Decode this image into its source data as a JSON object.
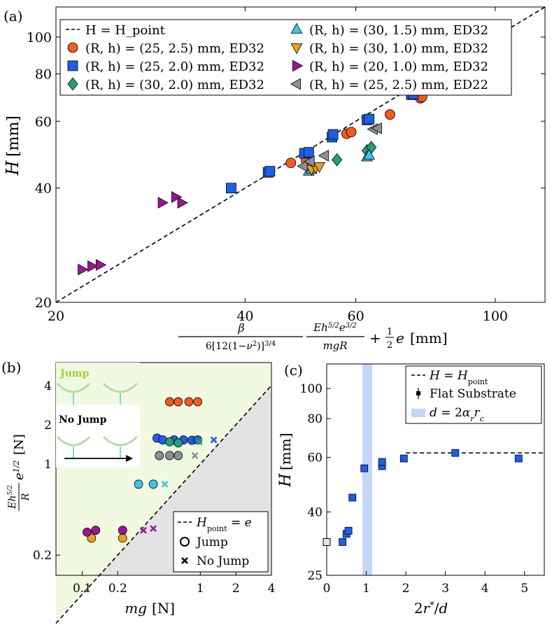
{
  "chart_data": [
    {
      "panel": "(a)",
      "type": "scatter",
      "xscale": "log",
      "yscale": "log",
      "xlim": [
        20,
        120
      ],
      "ylim": [
        20,
        120
      ],
      "xticks": [
        20,
        40,
        60,
        100
      ],
      "yticks": [
        20,
        40,
        60,
        80,
        100
      ],
      "ylabel_var": "H",
      "ylabel_unit": "[mm]",
      "xlabel": {
        "beta": "β",
        "denom": "6[12(1−ν²)]^{3/4}",
        "num2": "Eh^{5/2}e^{3/2}",
        "den2": "mgR",
        "tail": "+ ½e [mm]",
        "unit": "[mm]"
      },
      "legend_position": "top",
      "reference_line": {
        "label": "H = H_point",
        "kind": "y=x"
      },
      "series": [
        {
          "name": "(R, h) = (25, 2.5) mm, ED32",
          "marker": "circle",
          "color": "#f25a1e",
          "points": [
            [
              47.3,
              46.6
            ],
            [
              50,
              47.4
            ],
            [
              58,
              55.6
            ],
            [
              59,
              56.2
            ],
            [
              68,
              62.5
            ],
            [
              76,
              69
            ],
            [
              76.5,
              69.5
            ]
          ]
        },
        {
          "name": "(R, h) = (25, 2.0) mm, ED32",
          "marker": "square",
          "color": "#1f5fe6",
          "points": [
            [
              38,
              40
            ],
            [
              43.5,
              44
            ],
            [
              43.8,
              44.3
            ],
            [
              49.7,
              49.4
            ],
            [
              50.5,
              49.7
            ],
            [
              55,
              54.5
            ],
            [
              55.2,
              55.4
            ],
            [
              62.5,
              60.5
            ],
            [
              63,
              60.8
            ],
            [
              73.5,
              70.5
            ],
            [
              74,
              70.8
            ]
          ]
        },
        {
          "name": "(R, h) = (30, 2.0) mm, ED32",
          "marker": "diamond",
          "color": "#22a07a",
          "points": [
            [
              56,
              47.5
            ],
            [
              62.5,
              50.2
            ],
            [
              63.5,
              51.2
            ]
          ]
        },
        {
          "name": "(R, h) = (30, 1.5) mm, ED32",
          "marker": "triangle-up",
          "color": "#3ec5ea",
          "points": [
            [
              50.5,
              44.3
            ],
            [
              51,
              44.8
            ],
            [
              62.5,
              48.3
            ],
            [
              63,
              48.8
            ]
          ]
        },
        {
          "name": "(R, h) = (30, 1.0) mm, ED32",
          "marker": "triangle-down",
          "color": "#e8a11a",
          "points": [
            [
              51,
              44.8
            ],
            [
              51.8,
              45.3
            ],
            [
              52.5,
              45.6
            ]
          ]
        },
        {
          "name": "(R, h) = (20, 1.0) mm, ED32",
          "marker": "triangle-right",
          "color": "#9b1693",
          "points": [
            [
              22,
              24.4
            ],
            [
              22.8,
              24.9
            ],
            [
              23.5,
              25.1
            ],
            [
              29.5,
              36.6
            ],
            [
              31,
              37.9
            ],
            [
              31.7,
              36.6
            ]
          ]
        },
        {
          "name": "(R, h) = (25, 2.5) mm, ED22",
          "marker": "triangle-left",
          "color": "#8a9098",
          "points": [
            [
              49.5,
              45.7
            ],
            [
              50.8,
              47
            ],
            [
              53.5,
              48.7
            ],
            [
              64,
              57.2
            ],
            [
              65,
              57.5
            ]
          ]
        }
      ]
    },
    {
      "panel": "(b)",
      "type": "scatter",
      "xscale": "log",
      "yscale": "log",
      "xlim": [
        0.06,
        4
      ],
      "ylim": [
        0.14,
        6
      ],
      "xticks": [
        0.1,
        0.2,
        1,
        2,
        4
      ],
      "yticks": [
        0.2,
        1,
        2,
        4
      ],
      "xlabel_var": "mg",
      "xlabel_unit": "[N]",
      "ylabel_frac_num": "Eh^{5/2}",
      "ylabel_frac_den": "R",
      "ylabel_tail": "e^{1/2}",
      "ylabel_unit": "[N]",
      "reference_line": {
        "label": "H_point = e",
        "kind": "y=x"
      },
      "regions": {
        "above": "Jump",
        "below": "No Jump"
      },
      "inset_labels": {
        "jump": "Jump",
        "no_jump": "No Jump"
      },
      "legend": [
        "H_point = e",
        "Jump",
        "No Jump"
      ],
      "legend_position": "bottom-right",
      "jump": [
        {
          "color": "#f25a1e",
          "points": [
            [
              0.55,
              3
            ],
            [
              0.65,
              3
            ],
            [
              0.8,
              3
            ],
            [
              0.95,
              3
            ]
          ]
        },
        {
          "color": "#1f5fe6",
          "points": [
            [
              0.43,
              1.58
            ],
            [
              0.48,
              1.53
            ],
            [
              0.6,
              1.53
            ],
            [
              0.72,
              1.53
            ],
            [
              0.85,
              1.52
            ],
            [
              0.95,
              1.53
            ]
          ]
        },
        {
          "color": "#22a07a",
          "points": [
            [
              0.55,
              1.48
            ],
            [
              0.65,
              1.45
            ]
          ]
        },
        {
          "color": "#8a9098",
          "points": [
            [
              0.45,
              1.16
            ],
            [
              0.55,
              1.16
            ],
            [
              0.65,
              1.16
            ]
          ]
        },
        {
          "color": "#3ec5ea",
          "points": [
            [
              0.3,
              0.7
            ],
            [
              0.4,
              0.7
            ]
          ]
        },
        {
          "color": "#e8a11a",
          "points": [
            [
              0.12,
              0.27
            ],
            [
              0.22,
              0.27
            ]
          ]
        },
        {
          "color": "#9b1693",
          "points": [
            [
              0.11,
              0.3
            ],
            [
              0.13,
              0.31
            ],
            [
              0.22,
              0.31
            ]
          ]
        }
      ],
      "no_jump": [
        {
          "color": "#1f5fe6",
          "points": [
            [
              1.3,
              1.53
            ]
          ]
        },
        {
          "color": "#22a07a",
          "points": [
            [
              0.98,
              1.48
            ]
          ]
        },
        {
          "color": "#8a9098",
          "points": [
            [
              0.9,
              1.16
            ]
          ]
        },
        {
          "color": "#3ec5ea",
          "points": [
            [
              0.5,
              0.7
            ]
          ]
        },
        {
          "color": "#e8a11a",
          "points": [
            [
              0.22,
              0.27
            ]
          ]
        },
        {
          "color": "#9b1693",
          "points": [
            [
              0.33,
              0.31
            ],
            [
              0.4,
              0.32
            ]
          ]
        }
      ]
    },
    {
      "panel": "(c)",
      "type": "scatter",
      "xscale": "linear",
      "yscale": "log",
      "xlim": [
        0,
        5.5
      ],
      "ylim": [
        25,
        120
      ],
      "xticks": [
        0,
        1,
        2,
        3,
        4,
        5
      ],
      "yticks": [
        25,
        40,
        60,
        80,
        100
      ],
      "xlabel": "2r*/d",
      "ylabel_var": "H",
      "ylabel_unit": "[mm]",
      "band": {
        "x0": 0.9,
        "x1": 1.15,
        "label": "d = 2α_r r_c",
        "color": "#c4d6f7"
      },
      "reference_line": {
        "label": "H = H_point",
        "y": 62,
        "x_start": 2.0
      },
      "legend": [
        "H = H_point",
        "Flat Substrate",
        "d = 2α_r r_c"
      ],
      "legend_position": "top-right",
      "flat_substrate_point": [
        0,
        32
      ],
      "points": [
        [
          0.4,
          32
        ],
        [
          0.5,
          34
        ],
        [
          0.55,
          34.8
        ],
        [
          0.65,
          44.5
        ],
        [
          0.95,
          55.3
        ],
        [
          1.4,
          56.2
        ],
        [
          1.4,
          58
        ],
        [
          1.95,
          59.5
        ],
        [
          3.25,
          62
        ],
        [
          4.85,
          59.5
        ]
      ],
      "color": "#1f5fe6"
    }
  ]
}
